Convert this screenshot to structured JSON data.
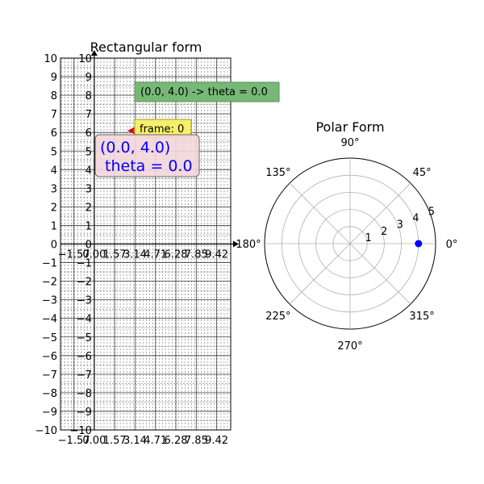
{
  "chart_data": [
    {
      "type": "line",
      "title": "Rectangular form",
      "xlabel": "",
      "ylabel": "",
      "xlim": [
        -2.6,
        10.5
      ],
      "ylim": [
        -10,
        10
      ],
      "xticks": [
        -1.57,
        0.0,
        1.57,
        3.14,
        4.71,
        6.28,
        7.85,
        9.42
      ],
      "xtick_labels": [
        "−1.57",
        "0.00",
        "1.57",
        "3.14",
        "4.71",
        "6.28",
        "7.85",
        "9.42"
      ],
      "yticks": [
        -10,
        -9,
        -8,
        -7,
        -6,
        -5,
        -4,
        -3,
        -2,
        -1,
        0,
        1,
        2,
        3,
        4,
        5,
        6,
        7,
        8,
        9,
        10
      ],
      "ytick_labels": [
        "−10",
        "−9",
        "−8",
        "−7",
        "−6",
        "−5",
        "−4",
        "−3",
        "−2",
        "−1",
        "0",
        "1",
        "2",
        "3",
        "4",
        "5",
        "6",
        "7",
        "8",
        "9",
        "10"
      ],
      "grid": true,
      "annotations": {
        "green_box": "(0.0, 4.0) -> theta = 0.0",
        "frame_box": "frame: 0",
        "pink_line1": "(0.0, 4.0)",
        "pink_line2": " theta = 0.0"
      },
      "colors": {
        "green": "#77b877",
        "yellow": "#f5ef6a",
        "pink": "#f4d6da",
        "arrow": "#e00000",
        "blue_text": "#0000ff"
      }
    },
    {
      "type": "scatter",
      "projection": "polar",
      "title": "Polar Form",
      "rlim": [
        0,
        5
      ],
      "rticks": [
        1,
        2,
        3,
        4,
        5
      ],
      "rtick_labels": [
        "1",
        "2",
        "3",
        "4",
        "5"
      ],
      "theta_ticks_deg": [
        0,
        45,
        90,
        135,
        180,
        225,
        270,
        315
      ],
      "theta_tick_labels": [
        "0°",
        "45°",
        "90°",
        "135°",
        "180°",
        "225°",
        "270°",
        "315°"
      ],
      "points": [
        {
          "theta_deg": 0,
          "r": 4.0
        }
      ],
      "grid": true,
      "point_color": "#0000ff"
    }
  ]
}
